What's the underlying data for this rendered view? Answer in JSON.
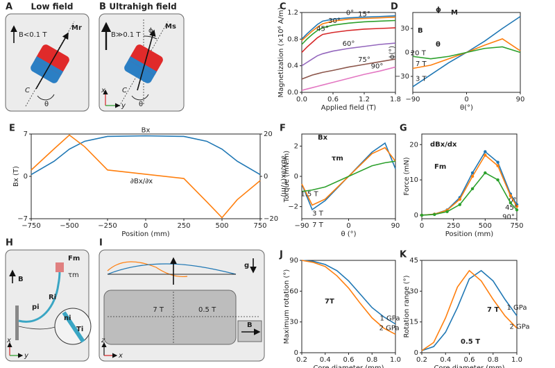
{
  "diagrams": {
    "A": {
      "label": "A",
      "title": "Low field",
      "field": "B<0.1 T",
      "moment": "Mr",
      "curve": "C",
      "angle": "θ"
    },
    "B": {
      "label": "B",
      "title": "Ultrahigh field",
      "field": "B≫0.1 T",
      "moment": "Ms",
      "phi": "ϕ",
      "curve": "C",
      "angle": "θ",
      "axis_x": "x",
      "axis_y": "y"
    },
    "H": {
      "label": "H",
      "field": "B",
      "force": "Fm",
      "torque": "τm",
      "radius": "Ri",
      "position": "pi",
      "normal": "ni",
      "tension": "Ti",
      "axis_x": "x",
      "axis_y": "y"
    },
    "I": {
      "label": "I",
      "gravity": "g",
      "strong": "7 T",
      "weak": "0.5 T",
      "field": "B",
      "axis_z": "z",
      "axis_x": "x"
    }
  },
  "chart_data": [
    {
      "type": "line",
      "label": "C",
      "xlabel": "Applied field (T)",
      "ylabel": "Magnetization (×10⁶ A/m)",
      "xlim": [
        0,
        1.8
      ],
      "ylim": [
        0,
        1.2
      ],
      "xticks": [
        {
          "value": 0,
          "label": "0.0"
        },
        0.6,
        1.2,
        1.8
      ],
      "yticks": [
        {
          "value": 0,
          "label": "0.0"
        },
        0.4,
        0.8,
        1.2
      ],
      "x": [
        0,
        0.1,
        0.2,
        0.3,
        0.4,
        0.6,
        0.9,
        1.2,
        1.5,
        1.8
      ],
      "series": [
        {
          "name": "0°",
          "color": "#1f77b4",
          "values": [
            0.8,
            0.88,
            0.95,
            1.02,
            1.07,
            1.1,
            1.12,
            1.13,
            1.14,
            1.15
          ]
        },
        {
          "name": "15°",
          "color": "#ff7f0e",
          "values": [
            0.78,
            0.85,
            0.92,
            0.98,
            1.03,
            1.07,
            1.1,
            1.11,
            1.12,
            1.13
          ]
        },
        {
          "name": "30°",
          "color": "#2ca02c",
          "values": [
            0.72,
            0.8,
            0.87,
            0.93,
            0.97,
            1.01,
            1.04,
            1.06,
            1.07,
            1.08
          ]
        },
        {
          "name": "45°",
          "color": "#d62728",
          "values": [
            0.6,
            0.68,
            0.75,
            0.82,
            0.87,
            0.9,
            0.93,
            0.95,
            0.96,
            0.97
          ]
        },
        {
          "name": "60°",
          "color": "#9467bd",
          "values": [
            0.4,
            0.45,
            0.5,
            0.55,
            0.58,
            0.62,
            0.66,
            0.69,
            0.72,
            0.74
          ]
        },
        {
          "name": "75°",
          "color": "#8c564b",
          "values": [
            0.2,
            0.23,
            0.26,
            0.28,
            0.3,
            0.33,
            0.38,
            0.42,
            0.46,
            0.5
          ]
        },
        {
          "name": "90°",
          "color": "#e377c2",
          "values": [
            0.03,
            0.05,
            0.07,
            0.09,
            0.11,
            0.15,
            0.21,
            0.27,
            0.32,
            0.38
          ]
        }
      ]
    },
    {
      "type": "line",
      "label": "D",
      "xlabel": "θ(°)",
      "ylabel": "ϕ(°)",
      "inset": [
        "B",
        "ϕ",
        "M",
        "θ"
      ],
      "xlim": [
        -90,
        90
      ],
      "ylim": [
        -50,
        50
      ],
      "xticks": [
        {
          "value": -90,
          "label": "−90"
        },
        0,
        90
      ],
      "yticks": [
        {
          "value": -30,
          "label": "−30"
        },
        0,
        30
      ],
      "x": [
        -90,
        -60,
        -30,
        0,
        30,
        60,
        90
      ],
      "series": [
        {
          "name": "3 T",
          "color": "#1f77b4",
          "values": [
            -43,
            -28,
            -13,
            0,
            14,
            30,
            45
          ]
        },
        {
          "name": "7 T",
          "color": "#ff7f0e",
          "values": [
            -20,
            -16,
            -8,
            0,
            9,
            17,
            2
          ]
        },
        {
          "name": "20 T",
          "color": "#2ca02c",
          "values": [
            -5,
            -8,
            -5,
            0,
            5,
            7,
            0
          ]
        }
      ]
    },
    {
      "type": "line",
      "label": "E",
      "xlabel": "Position (mm)",
      "ylabel": "Bx (T)",
      "y2label": "∂Bx/∂x(T/m)",
      "xlim": [
        -750,
        750
      ],
      "ylim": [
        -7,
        7
      ],
      "y2lim": [
        -20,
        20
      ],
      "xticks": [
        {
          "value": -750,
          "label": "−750"
        },
        {
          "value": -500,
          "label": "−500"
        },
        {
          "value": -250,
          "label": "−250"
        },
        0,
        250,
        500,
        750
      ],
      "yticks": [
        {
          "value": -7,
          "label": "−7"
        },
        0,
        7
      ],
      "y2ticks": [
        {
          "value": -20,
          "label": "−20"
        },
        0,
        20
      ],
      "x": [
        -750,
        -600,
        -500,
        -400,
        -250,
        0,
        250,
        400,
        500,
        600,
        750
      ],
      "series": [
        {
          "name": "Bx",
          "color": "#1f77b4",
          "values": [
            0.3,
            2.5,
            4.5,
            5.8,
            6.6,
            6.7,
            6.6,
            5.8,
            4.5,
            2.5,
            0.3
          ]
        },
        {
          "name": "∂Bx/∂x",
          "color": "#ff7f0e",
          "axis": "y2",
          "values": [
            3,
            13,
            19.5,
            14,
            3,
            1,
            -1,
            -12,
            -19.5,
            -11,
            -2
          ]
        }
      ]
    },
    {
      "type": "line",
      "label": "F",
      "xlabel": "θ (°)",
      "ylabel": "Torque (mN.m)",
      "inset": [
        "Bx",
        "τm"
      ],
      "xlim": [
        -90,
        90
      ],
      "ylim": [
        -2.8,
        2.8
      ],
      "xticks": [
        {
          "value": -90,
          "label": "−90"
        },
        0,
        90
      ],
      "yticks": [
        {
          "value": -2,
          "label": "−2"
        },
        0,
        2
      ],
      "x": [
        -90,
        -70,
        -45,
        0,
        45,
        70,
        90
      ],
      "series": [
        {
          "name": "7 T",
          "color": "#1f77b4",
          "values": [
            -0.5,
            -2.2,
            -1.6,
            0,
            1.6,
            2.2,
            0.5
          ]
        },
        {
          "name": "3 T",
          "color": "#ff7f0e",
          "values": [
            -0.5,
            -1.9,
            -1.5,
            0,
            1.5,
            1.9,
            1.0
          ]
        },
        {
          "name": "1.5 T",
          "color": "#2ca02c",
          "values": [
            -1.0,
            -0.9,
            -0.7,
            0,
            0.7,
            0.9,
            1.0
          ]
        }
      ]
    },
    {
      "type": "line",
      "label": "G",
      "xlabel": "Position (mm)",
      "ylabel": "Force (mN)",
      "inset": [
        "dBx/dx",
        "Fm"
      ],
      "markers": true,
      "xlim": [
        0,
        750
      ],
      "ylim": [
        -1,
        23
      ],
      "xticks": [
        0,
        250,
        500,
        750
      ],
      "yticks": [
        0,
        10,
        20
      ],
      "x": [
        0,
        100,
        200,
        300,
        400,
        500,
        600,
        700,
        750
      ],
      "series": [
        {
          "name": "0°",
          "color": "#1f77b4",
          "values": [
            0,
            0.3,
            1.5,
            5,
            12,
            18,
            15,
            6,
            3
          ]
        },
        {
          "name": "45°",
          "color": "#ff7f0e",
          "values": [
            0,
            0.3,
            1.4,
            4.5,
            11,
            17,
            14,
            5.5,
            2.5
          ]
        },
        {
          "name": "90°",
          "color": "#2ca02c",
          "values": [
            0,
            0.2,
            1,
            3,
            7.5,
            12,
            10,
            3.5,
            1.5
          ]
        }
      ]
    },
    {
      "type": "line",
      "label": "J",
      "xlabel": "Core diameter (mm)",
      "ylabel": "Maximum rotation (°)",
      "inset": [
        "7T"
      ],
      "xlim": [
        0.2,
        1.0
      ],
      "ylim": [
        0,
        90
      ],
      "xticks": [
        0.2,
        0.4,
        0.6,
        0.8,
        {
          "value": 1,
          "label": "1.0"
        }
      ],
      "yticks": [
        0,
        30,
        60,
        90
      ],
      "x": [
        0.2,
        0.3,
        0.4,
        0.5,
        0.6,
        0.7,
        0.8,
        0.9,
        1.0
      ],
      "series": [
        {
          "name": "1 GPa",
          "color": "#1f77b4",
          "values": [
            90,
            89,
            86,
            80,
            70,
            57,
            44,
            35,
            28
          ]
        },
        {
          "name": "2 GPa",
          "color": "#ff7f0e",
          "values": [
            90,
            88,
            84,
            75,
            63,
            48,
            34,
            24,
            18
          ]
        }
      ]
    },
    {
      "type": "line",
      "label": "K",
      "xlabel": "Core diameter (mm)",
      "ylabel": "Rotation range (°)",
      "inset": [
        "7 T",
        "0.5 T"
      ],
      "xlim": [
        0.2,
        1.0
      ],
      "ylim": [
        0,
        45
      ],
      "xticks": [
        0.2,
        0.4,
        0.6,
        0.8,
        {
          "value": 1,
          "label": "1.0"
        }
      ],
      "yticks": [
        0,
        15,
        30,
        45
      ],
      "x": [
        0.2,
        0.3,
        0.4,
        0.5,
        0.6,
        0.7,
        0.8,
        0.9,
        1.0
      ],
      "series": [
        {
          "name": "1 GPa",
          "color": "#1f77b4",
          "values": [
            1,
            3,
            10,
            22,
            36,
            40,
            35,
            26,
            18
          ]
        },
        {
          "name": "2 GPa",
          "color": "#ff7f0e",
          "values": [
            1,
            5,
            17,
            32,
            40,
            35,
            26,
            18,
            12
          ]
        }
      ]
    }
  ]
}
